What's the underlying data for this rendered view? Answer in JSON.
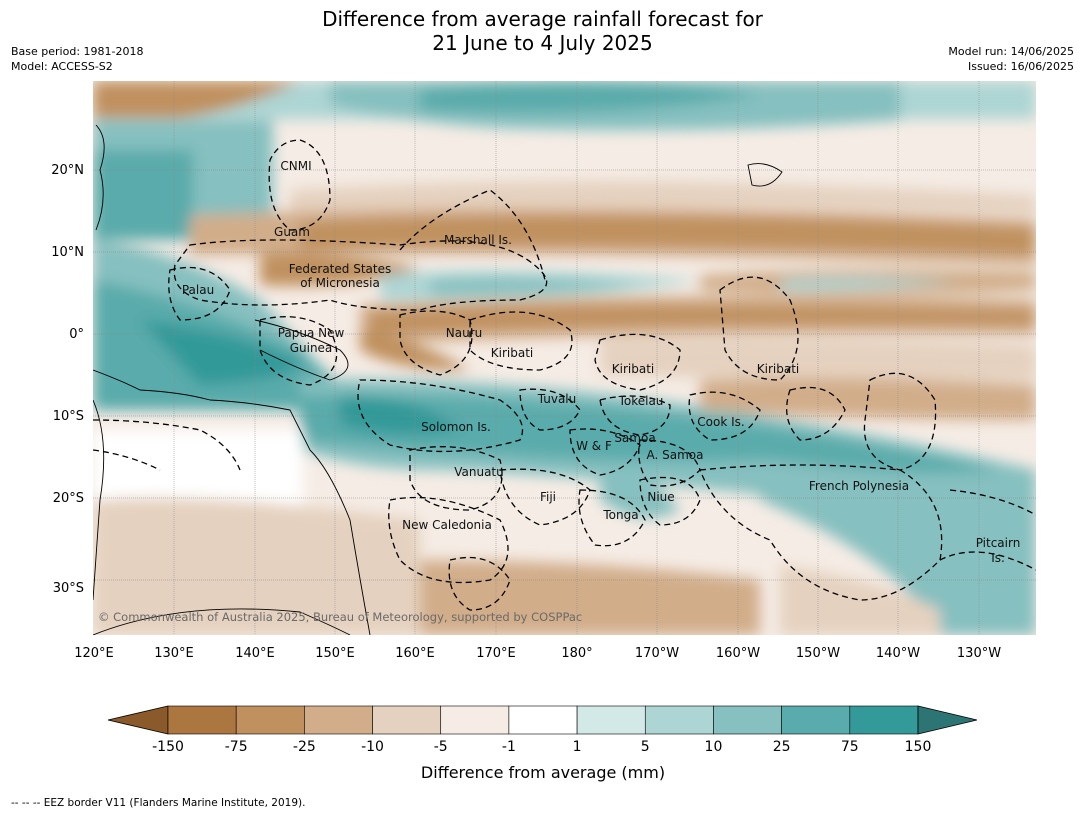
{
  "header": {
    "title_line1": "Difference from average rainfall forecast for",
    "title_line2": "21 June to 4 July 2025",
    "base_period": "Base period: 1981-2018",
    "model": "Model: ACCESS-S2",
    "model_run": "Model run: 14/06/2025",
    "issued": "Issued: 16/06/2025"
  },
  "map": {
    "lat_labels": [
      "20°N",
      "10°N",
      "0°",
      "10°S",
      "20°S",
      "30°S"
    ],
    "lon_labels": [
      "120°E",
      "130°E",
      "140°E",
      "150°E",
      "160°E",
      "170°E",
      "180°",
      "170°W",
      "160°W",
      "150°W",
      "140°W",
      "130°W"
    ],
    "regions": [
      {
        "name": "CNMI"
      },
      {
        "name": "Guam"
      },
      {
        "name": "Marshall Is."
      },
      {
        "name": "Federated States"
      },
      {
        "name": "of Micronesia"
      },
      {
        "name": "Palau"
      },
      {
        "name": "Papua New"
      },
      {
        "name": "Guinea"
      },
      {
        "name": "Nauru"
      },
      {
        "name": "Kiribati"
      },
      {
        "name": "Kiribati"
      },
      {
        "name": "Kiribati"
      },
      {
        "name": "Tuvalu"
      },
      {
        "name": "Tokelau"
      },
      {
        "name": "Cook Is."
      },
      {
        "name": "Solomon Is."
      },
      {
        "name": "W & F"
      },
      {
        "name": "Samoa"
      },
      {
        "name": "A. Samoa"
      },
      {
        "name": "Vanuatu"
      },
      {
        "name": "Fiji"
      },
      {
        "name": "Niue"
      },
      {
        "name": "Tonga"
      },
      {
        "name": "French Polynesia"
      },
      {
        "name": "New Caledonia"
      },
      {
        "name": "Pitcairn"
      },
      {
        "name": "Is."
      }
    ],
    "copyright": "© Commonwealth of Australia 2025, Bureau of Meteorology, supported by COSPPac"
  },
  "colorbar": {
    "title": "Difference from average (mm)",
    "ticks": [
      "-150",
      "-75",
      "-25",
      "-10",
      "-5",
      "-1",
      "1",
      "5",
      "10",
      "25",
      "75",
      "150"
    ],
    "colors": [
      "#8a5a2b",
      "#ab7640",
      "#c0915f",
      "#d1ad8a",
      "#e5d1bf",
      "#f5ece5",
      "#ffffff",
      "#d3e9e7",
      "#add5d4",
      "#86c0c0",
      "#5aabab",
      "#339999",
      "#2d7575"
    ]
  },
  "footer": {
    "eez_note": "--  --  -- EEZ border V11 (Flanders Marine Institute, 2019)."
  }
}
